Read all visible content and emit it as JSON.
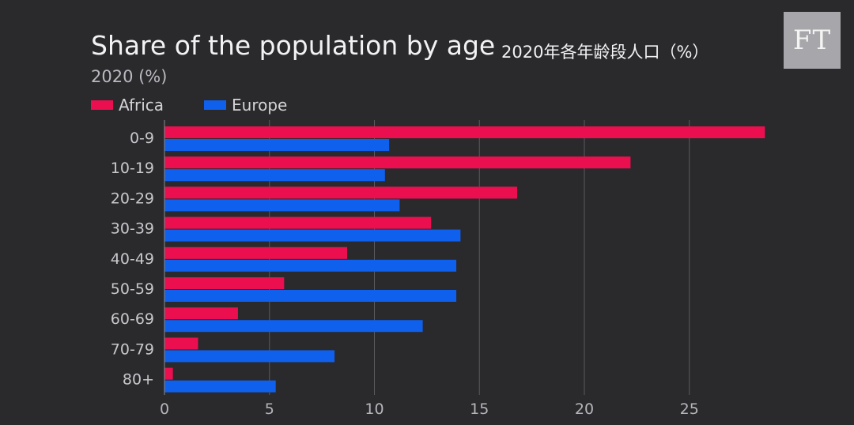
{
  "header": {
    "title": "Share of the population by age",
    "title_cn": "2020年各年龄段人口（%）",
    "subtitle": "2020 (%)",
    "logo_text": "FT"
  },
  "colors": {
    "background": "#2a2a2d",
    "africa": "#ec0f50",
    "europe": "#1060ee",
    "grid": "#5a5a5e",
    "logo_bg": "#a7a7ab"
  },
  "chart_data": {
    "type": "bar",
    "orientation": "horizontal",
    "title": "Share of the population by age",
    "subtitle": "2020 (%)",
    "categories": [
      "0-9",
      "10-19",
      "20-29",
      "30-39",
      "40-49",
      "50-59",
      "60-69",
      "70-79",
      "80+"
    ],
    "series": [
      {
        "name": "Africa",
        "values": [
          28.6,
          22.2,
          16.8,
          12.7,
          8.7,
          5.7,
          3.5,
          1.6,
          0.4
        ]
      },
      {
        "name": "Europe",
        "values": [
          10.7,
          10.5,
          11.2,
          14.1,
          13.9,
          13.9,
          12.3,
          8.1,
          5.3
        ]
      }
    ],
    "xticks": [
      0,
      5,
      10,
      15,
      20,
      25
    ],
    "xlim": [
      0,
      30
    ],
    "grid": true,
    "legend": "top-left"
  }
}
